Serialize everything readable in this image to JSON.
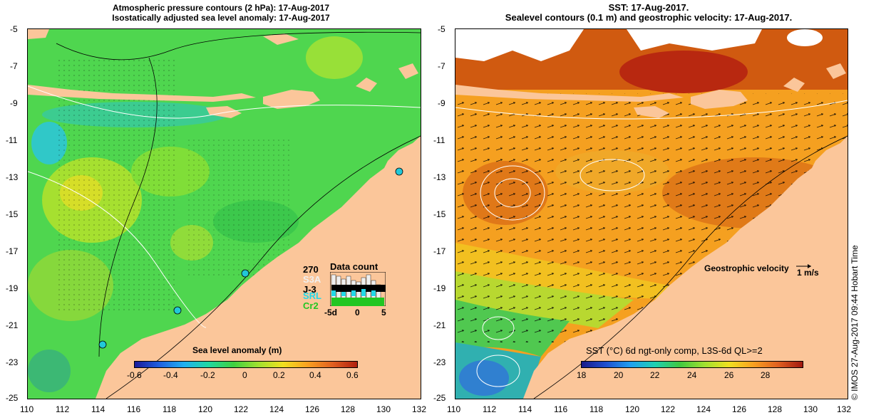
{
  "left_panel": {
    "title_line1": "Atmospheric pressure contours (2 hPa): 17-Aug-2017",
    "title_line2": "Isostatically adjusted sea level anomaly: 17-Aug-2017",
    "colorbar_label": "Sea level anomaly (m)",
    "colorbar_ticks": [
      "-0.6",
      "-0.4",
      "-0.2",
      "0",
      "0.2",
      "0.4",
      "0.6"
    ],
    "y_ticks": [
      "-5",
      "-7",
      "-9",
      "-11",
      "-13",
      "-15",
      "-17",
      "-19",
      "-21",
      "-23",
      "-25"
    ],
    "x_ticks": [
      "110",
      "112",
      "114",
      "116",
      "118",
      "120",
      "122",
      "124",
      "126",
      "128",
      "130",
      "132"
    ],
    "data_count": {
      "title": "Data count",
      "max_label": "270",
      "sensors": [
        "S3A",
        "J-3",
        "SRL",
        "Cr2"
      ],
      "sensor_colors": [
        "#f0f0f0",
        "#000000",
        "#22d8e8",
        "#22c622"
      ],
      "x_ticks": [
        "-5d",
        "0",
        "5"
      ]
    }
  },
  "right_panel": {
    "title_line1": "SST: 17-Aug-2017.",
    "title_line2": "Sealevel contours (0.1 m) and geostrophic velocity: 17-Aug-2017.",
    "colorbar_label": "SST (°C) 6d ngt-only comp, L3S-6d QL>=2",
    "colorbar_ticks": [
      "18",
      "20",
      "22",
      "24",
      "26",
      "28"
    ],
    "velocity_label": "Geostrophic velocity",
    "velocity_scale": "1 m/s",
    "y_ticks": [
      "-5",
      "-7",
      "-9",
      "-11",
      "-13",
      "-15",
      "-17",
      "-19",
      "-21",
      "-23",
      "-25"
    ],
    "x_ticks": [
      "110",
      "112",
      "114",
      "116",
      "118",
      "120",
      "122",
      "124",
      "126",
      "128",
      "130",
      "132"
    ]
  },
  "credit": "© IMOS 27-Aug-2017 09:44 Hobart Time",
  "colors": {
    "land": "#fbc69a",
    "sla_background": "#4fd64f",
    "sst_background": "#f5a020",
    "contour_white": "#ffffff",
    "contour_black": "#000000"
  }
}
